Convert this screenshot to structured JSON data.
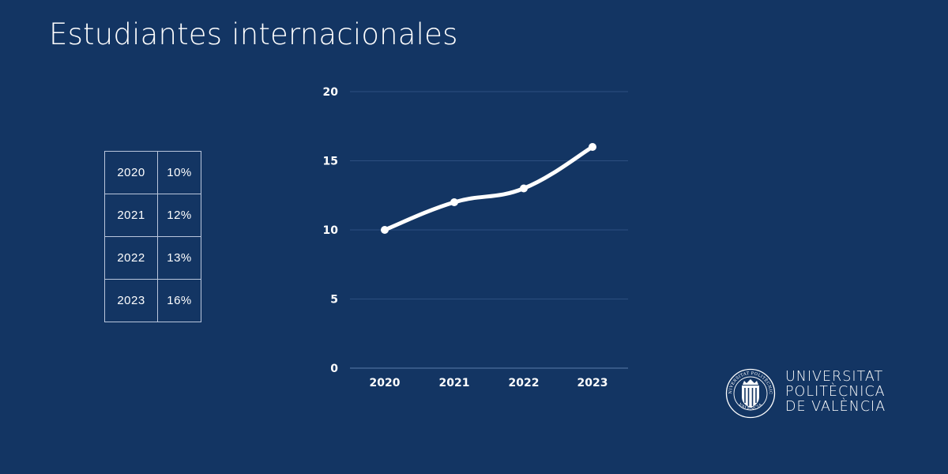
{
  "page": {
    "title": "Estudiantes internacionales",
    "background_color": "#133563",
    "text_color": "#ffffff"
  },
  "table": {
    "rows": [
      {
        "year": "2020",
        "value": "10%"
      },
      {
        "year": "2021",
        "value": "12%"
      },
      {
        "year": "2022",
        "value": "13%"
      },
      {
        "year": "2023",
        "value": "16%"
      }
    ]
  },
  "chart_data": {
    "type": "line",
    "title": "",
    "xlabel": "",
    "ylabel": "",
    "categories": [
      "2020",
      "2021",
      "2022",
      "2023"
    ],
    "values": [
      10,
      12,
      13,
      16
    ],
    "y_ticks": [
      "0",
      "5",
      "10",
      "15",
      "20"
    ],
    "ylim": [
      0,
      20
    ],
    "grid": true,
    "smooth": true,
    "markers": true,
    "line_color": "#ffffff",
    "legend": null
  },
  "logo": {
    "line1": "UNIVERSITAT",
    "line2": "POLITÈCNICA",
    "line3": "DE VALÈNCIA",
    "seal_top_text": "UNIVERSITAT POLITÈCNICA",
    "seal_bottom_text": "VALÈNCIA"
  }
}
